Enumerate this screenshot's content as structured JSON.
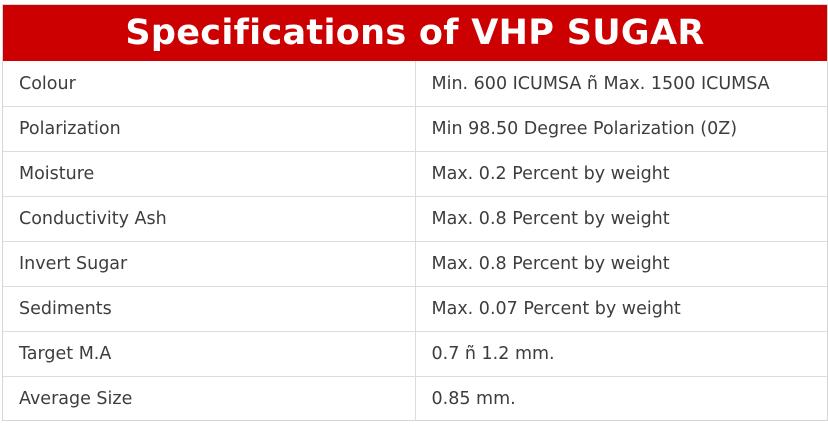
{
  "title": "Specifications of VHP SUGAR",
  "colors": {
    "header_background": "#cc0000",
    "header_text": "#ffffff",
    "cell_text": "#3d3d3d",
    "border": "#dcdcdc"
  },
  "rows": [
    {
      "label": "Colour",
      "value": "Min. 600 ICUMSA ñ Max. 1500 ICUMSA"
    },
    {
      "label": "Polarization",
      "value": "Min 98.50 Degree Polarization (0Z)"
    },
    {
      "label": "Moisture",
      "value": "Max. 0.2 Percent by weight"
    },
    {
      "label": "Conductivity Ash",
      "value": "Max. 0.8 Percent by weight"
    },
    {
      "label": "Invert Sugar",
      "value": "Max. 0.8 Percent by weight"
    },
    {
      "label": "Sediments",
      "value": "Max. 0.07 Percent by weight"
    },
    {
      "label": "Target M.A",
      "value": "0.7 ñ 1.2 mm."
    },
    {
      "label": "Average Size",
      "value": "0.85 mm."
    }
  ]
}
